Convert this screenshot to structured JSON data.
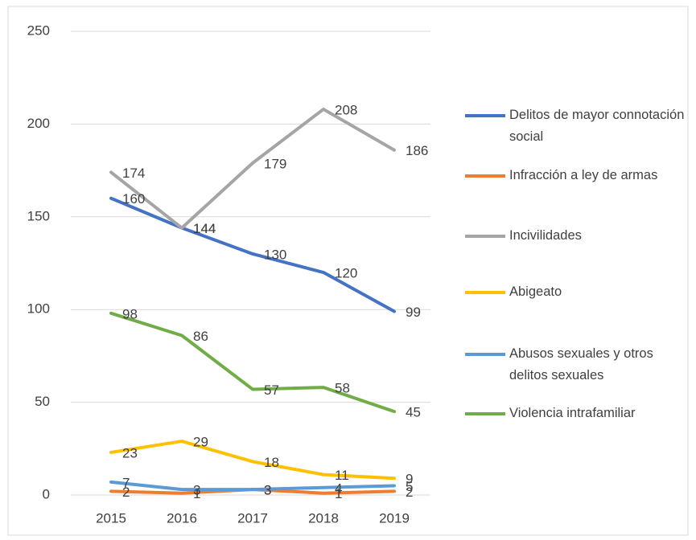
{
  "chart_data": {
    "type": "line",
    "categories": [
      "2015",
      "2016",
      "2017",
      "2018",
      "2019"
    ],
    "series": [
      {
        "name": "Delitos de mayor connotación social",
        "color": "#4472c4",
        "values": [
          160,
          144,
          130,
          120,
          99
        ]
      },
      {
        "name": "Infracción a ley de armas",
        "color": "#ed7d31",
        "values": [
          2,
          1,
          3,
          1,
          2
        ]
      },
      {
        "name": "Incivilidades",
        "color": "#a5a5a5",
        "values": [
          174,
          144,
          179,
          208,
          186
        ]
      },
      {
        "name": "Abigeato",
        "color": "#ffc000",
        "values": [
          23,
          29,
          18,
          11,
          9
        ]
      },
      {
        "name": "Abusos sexuales y otros delitos sexuales",
        "color": "#5b9bd5",
        "values": [
          7,
          3,
          3,
          4,
          5
        ]
      },
      {
        "name": "Violencia intrafamiliar",
        "color": "#70ad47",
        "values": [
          98,
          86,
          57,
          58,
          45
        ]
      }
    ],
    "ylim": [
      0,
      250
    ],
    "yticks": [
      0,
      50,
      100,
      150,
      200,
      250
    ],
    "grid": true,
    "legend": "right"
  }
}
